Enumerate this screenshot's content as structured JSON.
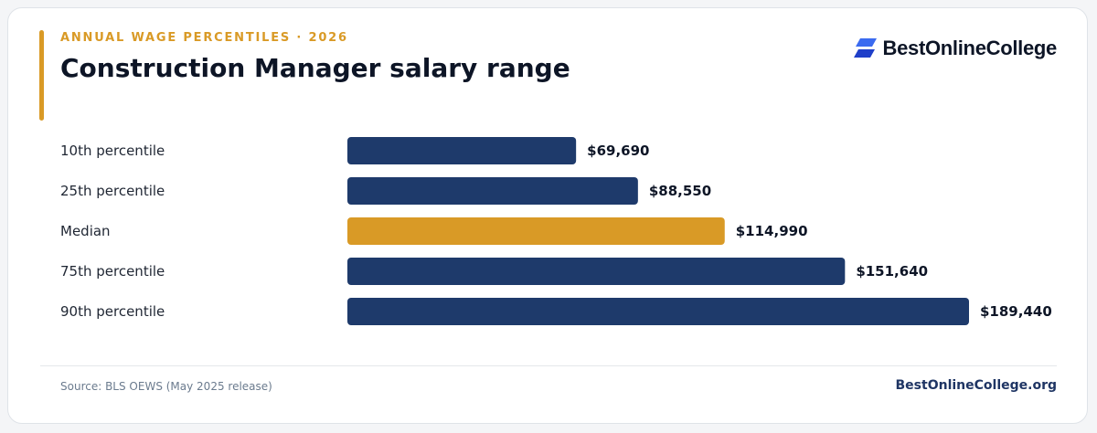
{
  "header": {
    "eyebrow": "ANNUAL WAGE PERCENTILES · 2026",
    "title": "Construction Manager salary range"
  },
  "brand": {
    "name": "BestOnlineCollege",
    "icon": "stacked-chevrons-logo-icon"
  },
  "footer": {
    "source": "Source: BLS OEWS (May 2025 release)",
    "site": "BestOnlineCollege.org"
  },
  "colors": {
    "accent": "#d99a26",
    "bar_default": "#1e3a6b",
    "bar_highlight": "#d99a26",
    "title": "#0d1526",
    "brand_navy": "#1f3564",
    "logo_light": "#3b6bf0",
    "logo_dark": "#1f3fc9"
  },
  "chart_data": {
    "type": "bar",
    "orientation": "horizontal",
    "categories": [
      "10th percentile",
      "25th percentile",
      "Median",
      "75th percentile",
      "90th percentile"
    ],
    "values": [
      69690,
      88550,
      114990,
      151640,
      189440
    ],
    "value_labels": [
      "$69,690",
      "$88,550",
      "$114,990",
      "$151,640",
      "$189,440"
    ],
    "highlight_category": "Median",
    "xlim": [
      0,
      189440
    ],
    "grid": false,
    "legend": "none"
  }
}
